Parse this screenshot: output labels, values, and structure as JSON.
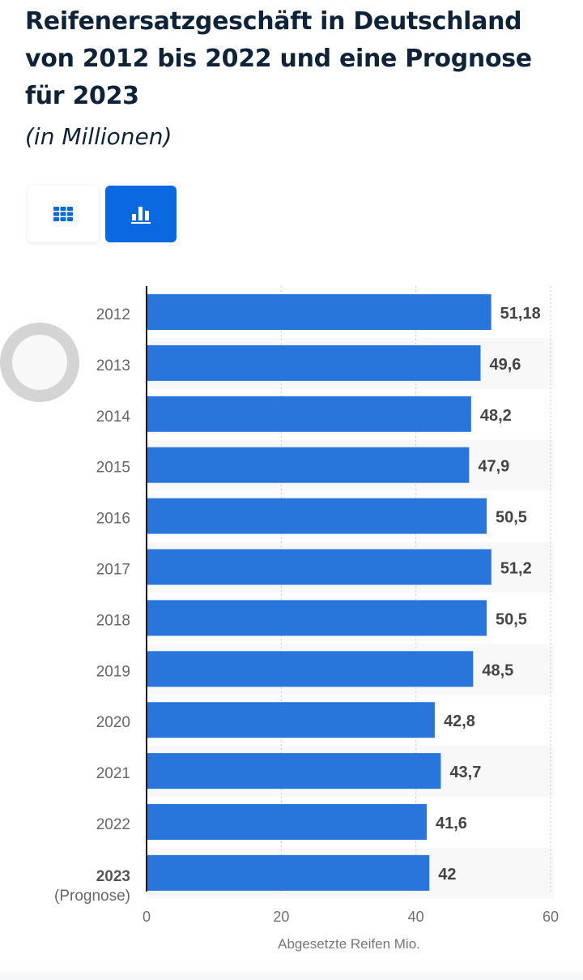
{
  "header": {
    "title": "Reifenersatzgeschäft in Deutschland von 2012 bis 2022 und eine Prognose für 2023",
    "subtitle": "(in Millionen)"
  },
  "view_toggle": {
    "table_icon": "grid-icon",
    "chart_icon": "bar-chart-icon",
    "active": "chart"
  },
  "colors": {
    "bar": "#2876dc",
    "accent": "#0a68e0",
    "title": "#0f2338"
  },
  "chart_data": {
    "type": "bar",
    "orientation": "horizontal",
    "categories": [
      "2012",
      "2013",
      "2014",
      "2015",
      "2016",
      "2017",
      "2018",
      "2019",
      "2020",
      "2021",
      "2022",
      "2023"
    ],
    "category_notes": {
      "2023": "(Prognose)"
    },
    "values": [
      51.18,
      49.6,
      48.2,
      47.9,
      50.5,
      51.2,
      50.5,
      48.5,
      42.8,
      43.7,
      41.6,
      42
    ],
    "data_labels": [
      "51,18",
      "49,6",
      "48,2",
      "47,9",
      "50,5",
      "51,2",
      "50,5",
      "48,5",
      "42,8",
      "43,7",
      "41,6",
      "42"
    ],
    "xlabel": "Abgesetzte Reifen Mio.",
    "xlim": [
      0,
      60
    ],
    "xticks": [
      "0",
      "20",
      "40",
      "60"
    ],
    "grid": true
  }
}
